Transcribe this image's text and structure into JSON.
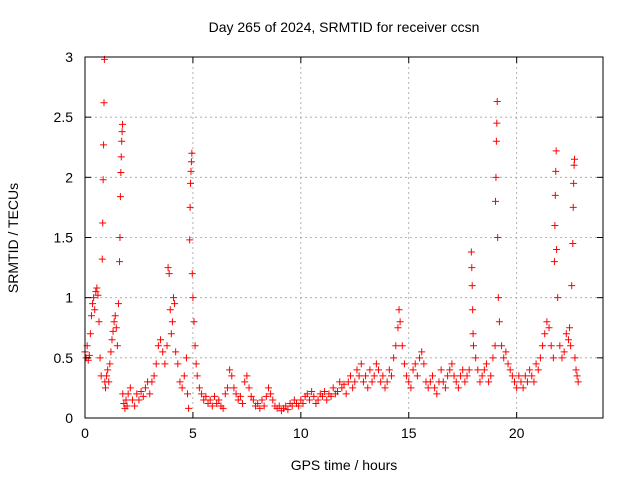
{
  "chart_data": {
    "type": "scatter",
    "title": "Day 265 of 2024, SRMTID for receiver ccsn",
    "xlabel": "GPS time / hours",
    "ylabel": "SRMTID / TECUs",
    "xlim": [
      0,
      24
    ],
    "ylim": [
      0,
      3
    ],
    "xticks": [
      0,
      5,
      10,
      15,
      20
    ],
    "xtick_labels": [
      "0",
      "5",
      "10",
      "15",
      "20"
    ],
    "yticks": [
      0,
      0.5,
      1,
      1.5,
      2,
      2.5,
      3
    ],
    "ytick_labels": [
      "0",
      "0.5",
      "1",
      "1.5",
      "2",
      "2.5",
      "3"
    ],
    "grid": true,
    "marker": "plus",
    "color": "#ff0000",
    "series": [
      {
        "name": "SRMTID",
        "points": [
          [
            0.0,
            0.55
          ],
          [
            0.05,
            0.5
          ],
          [
            0.1,
            0.6
          ],
          [
            0.15,
            0.48
          ],
          [
            0.2,
            0.52
          ],
          [
            0.25,
            0.7
          ],
          [
            0.3,
            0.85
          ],
          [
            0.35,
            0.95
          ],
          [
            0.4,
            1.0
          ],
          [
            0.45,
            0.9
          ],
          [
            0.5,
            1.05
          ],
          [
            0.55,
            1.08
          ],
          [
            0.6,
            1.02
          ],
          [
            0.65,
            0.8
          ],
          [
            0.7,
            0.5
          ],
          [
            0.75,
            0.35
          ],
          [
            0.8,
            1.32
          ],
          [
            0.82,
            1.62
          ],
          [
            0.84,
            1.98
          ],
          [
            0.86,
            2.27
          ],
          [
            0.88,
            2.62
          ],
          [
            0.9,
            2.98
          ],
          [
            0.92,
            0.3
          ],
          [
            0.95,
            0.25
          ],
          [
            1.0,
            0.35
          ],
          [
            1.05,
            0.4
          ],
          [
            1.1,
            0.3
          ],
          [
            1.15,
            0.45
          ],
          [
            1.2,
            0.55
          ],
          [
            1.25,
            0.65
          ],
          [
            1.3,
            0.72
          ],
          [
            1.35,
            0.8
          ],
          [
            1.4,
            0.85
          ],
          [
            1.45,
            0.75
          ],
          [
            1.5,
            0.6
          ],
          [
            1.55,
            0.95
          ],
          [
            1.6,
            1.3
          ],
          [
            1.62,
            1.5
          ],
          [
            1.64,
            1.84
          ],
          [
            1.66,
            2.04
          ],
          [
            1.68,
            2.17
          ],
          [
            1.7,
            2.3
          ],
          [
            1.72,
            2.38
          ],
          [
            1.74,
            2.44
          ],
          [
            1.75,
            0.2
          ],
          [
            1.8,
            0.12
          ],
          [
            1.85,
            0.08
          ],
          [
            1.9,
            0.15
          ],
          [
            1.95,
            0.1
          ],
          [
            2.0,
            0.2
          ],
          [
            2.1,
            0.25
          ],
          [
            2.2,
            0.15
          ],
          [
            2.3,
            0.1
          ],
          [
            2.4,
            0.2
          ],
          [
            2.5,
            0.15
          ],
          [
            2.6,
            0.22
          ],
          [
            2.7,
            0.18
          ],
          [
            2.8,
            0.25
          ],
          [
            2.9,
            0.3
          ],
          [
            3.0,
            0.2
          ],
          [
            3.1,
            0.3
          ],
          [
            3.2,
            0.35
          ],
          [
            3.3,
            0.45
          ],
          [
            3.4,
            0.6
          ],
          [
            3.5,
            0.65
          ],
          [
            3.6,
            0.55
          ],
          [
            3.7,
            0.45
          ],
          [
            3.8,
            0.6
          ],
          [
            3.85,
            1.25
          ],
          [
            3.9,
            1.2
          ],
          [
            3.95,
            0.9
          ],
          [
            4.0,
            0.7
          ],
          [
            4.05,
            0.8
          ],
          [
            4.1,
            1.0
          ],
          [
            4.15,
            0.95
          ],
          [
            4.2,
            0.55
          ],
          [
            4.3,
            0.45
          ],
          [
            4.4,
            0.3
          ],
          [
            4.5,
            0.25
          ],
          [
            4.6,
            0.35
          ],
          [
            4.7,
            0.5
          ],
          [
            4.75,
            0.2
          ],
          [
            4.8,
            0.08
          ],
          [
            4.85,
            1.48
          ],
          [
            4.87,
            1.75
          ],
          [
            4.89,
            1.95
          ],
          [
            4.91,
            2.05
          ],
          [
            4.93,
            2.13
          ],
          [
            4.95,
            2.2
          ],
          [
            4.97,
            1.2
          ],
          [
            5.0,
            1.0
          ],
          [
            5.05,
            0.8
          ],
          [
            5.1,
            0.6
          ],
          [
            5.15,
            0.45
          ],
          [
            5.2,
            0.35
          ],
          [
            5.3,
            0.25
          ],
          [
            5.4,
            0.2
          ],
          [
            5.5,
            0.15
          ],
          [
            5.6,
            0.18
          ],
          [
            5.7,
            0.12
          ],
          [
            5.8,
            0.15
          ],
          [
            5.9,
            0.1
          ],
          [
            6.0,
            0.18
          ],
          [
            6.1,
            0.12
          ],
          [
            6.2,
            0.15
          ],
          [
            6.3,
            0.1
          ],
          [
            6.4,
            0.08
          ],
          [
            6.5,
            0.2
          ],
          [
            6.6,
            0.25
          ],
          [
            6.7,
            0.4
          ],
          [
            6.8,
            0.35
          ],
          [
            6.9,
            0.25
          ],
          [
            7.0,
            0.2
          ],
          [
            7.1,
            0.15
          ],
          [
            7.2,
            0.18
          ],
          [
            7.3,
            0.12
          ],
          [
            7.4,
            0.3
          ],
          [
            7.5,
            0.35
          ],
          [
            7.6,
            0.25
          ],
          [
            7.7,
            0.18
          ],
          [
            7.8,
            0.15
          ],
          [
            7.9,
            0.1
          ],
          [
            8.0,
            0.12
          ],
          [
            8.1,
            0.08
          ],
          [
            8.2,
            0.15
          ],
          [
            8.3,
            0.1
          ],
          [
            8.4,
            0.18
          ],
          [
            8.5,
            0.25
          ],
          [
            8.6,
            0.2
          ],
          [
            8.7,
            0.15
          ],
          [
            8.8,
            0.1
          ],
          [
            8.9,
            0.08
          ],
          [
            9.0,
            0.1
          ],
          [
            9.1,
            0.06
          ],
          [
            9.2,
            0.08
          ],
          [
            9.3,
            0.1
          ],
          [
            9.4,
            0.07
          ],
          [
            9.5,
            0.12
          ],
          [
            9.6,
            0.1
          ],
          [
            9.7,
            0.15
          ],
          [
            9.8,
            0.12
          ],
          [
            9.9,
            0.1
          ],
          [
            10.0,
            0.15
          ],
          [
            10.1,
            0.12
          ],
          [
            10.2,
            0.18
          ],
          [
            10.3,
            0.2
          ],
          [
            10.4,
            0.15
          ],
          [
            10.5,
            0.22
          ],
          [
            10.6,
            0.18
          ],
          [
            10.7,
            0.12
          ],
          [
            10.8,
            0.15
          ],
          [
            10.9,
            0.2
          ],
          [
            11.0,
            0.18
          ],
          [
            11.1,
            0.22
          ],
          [
            11.2,
            0.15
          ],
          [
            11.3,
            0.2
          ],
          [
            11.4,
            0.18
          ],
          [
            11.5,
            0.25
          ],
          [
            11.6,
            0.2
          ],
          [
            11.7,
            0.22
          ],
          [
            11.8,
            0.3
          ],
          [
            11.9,
            0.25
          ],
          [
            12.0,
            0.28
          ],
          [
            12.1,
            0.2
          ],
          [
            12.2,
            0.3
          ],
          [
            12.3,
            0.35
          ],
          [
            12.4,
            0.25
          ],
          [
            12.5,
            0.3
          ],
          [
            12.6,
            0.4
          ],
          [
            12.7,
            0.35
          ],
          [
            12.8,
            0.45
          ],
          [
            12.9,
            0.3
          ],
          [
            13.0,
            0.35
          ],
          [
            13.1,
            0.25
          ],
          [
            13.2,
            0.4
          ],
          [
            13.3,
            0.3
          ],
          [
            13.4,
            0.35
          ],
          [
            13.5,
            0.45
          ],
          [
            13.6,
            0.4
          ],
          [
            13.7,
            0.3
          ],
          [
            13.8,
            0.35
          ],
          [
            13.9,
            0.25
          ],
          [
            14.0,
            0.3
          ],
          [
            14.1,
            0.4
          ],
          [
            14.2,
            0.35
          ],
          [
            14.3,
            0.5
          ],
          [
            14.4,
            0.6
          ],
          [
            14.5,
            0.75
          ],
          [
            14.55,
            0.9
          ],
          [
            14.6,
            0.8
          ],
          [
            14.7,
            0.6
          ],
          [
            14.8,
            0.45
          ],
          [
            14.9,
            0.35
          ],
          [
            15.0,
            0.3
          ],
          [
            15.1,
            0.25
          ],
          [
            15.2,
            0.4
          ],
          [
            15.3,
            0.45
          ],
          [
            15.4,
            0.35
          ],
          [
            15.5,
            0.5
          ],
          [
            15.6,
            0.55
          ],
          [
            15.7,
            0.45
          ],
          [
            15.8,
            0.3
          ],
          [
            15.9,
            0.25
          ],
          [
            16.0,
            0.3
          ],
          [
            16.1,
            0.35
          ],
          [
            16.2,
            0.25
          ],
          [
            16.3,
            0.2
          ],
          [
            16.4,
            0.3
          ],
          [
            16.5,
            0.4
          ],
          [
            16.6,
            0.3
          ],
          [
            16.7,
            0.25
          ],
          [
            16.8,
            0.35
          ],
          [
            16.9,
            0.4
          ],
          [
            17.0,
            0.45
          ],
          [
            17.1,
            0.35
          ],
          [
            17.2,
            0.3
          ],
          [
            17.3,
            0.25
          ],
          [
            17.4,
            0.35
          ],
          [
            17.5,
            0.4
          ],
          [
            17.6,
            0.3
          ],
          [
            17.7,
            0.35
          ],
          [
            17.8,
            0.4
          ],
          [
            17.9,
            1.38
          ],
          [
            17.92,
            1.25
          ],
          [
            17.94,
            1.1
          ],
          [
            17.96,
            0.9
          ],
          [
            17.98,
            0.7
          ],
          [
            18.0,
            0.6
          ],
          [
            18.1,
            0.5
          ],
          [
            18.2,
            0.4
          ],
          [
            18.3,
            0.3
          ],
          [
            18.4,
            0.35
          ],
          [
            18.5,
            0.4
          ],
          [
            18.6,
            0.45
          ],
          [
            18.7,
            0.3
          ],
          [
            18.8,
            0.35
          ],
          [
            18.9,
            0.5
          ],
          [
            19.0,
            0.6
          ],
          [
            19.02,
            1.8
          ],
          [
            19.04,
            2.0
          ],
          [
            19.06,
            2.3
          ],
          [
            19.08,
            2.45
          ],
          [
            19.1,
            2.63
          ],
          [
            19.12,
            1.5
          ],
          [
            19.15,
            1.0
          ],
          [
            19.2,
            0.8
          ],
          [
            19.3,
            0.6
          ],
          [
            19.4,
            0.5
          ],
          [
            19.5,
            0.55
          ],
          [
            19.6,
            0.45
          ],
          [
            19.7,
            0.4
          ],
          [
            19.8,
            0.35
          ],
          [
            19.9,
            0.3
          ],
          [
            20.0,
            0.25
          ],
          [
            20.1,
            0.35
          ],
          [
            20.2,
            0.3
          ],
          [
            20.3,
            0.25
          ],
          [
            20.4,
            0.35
          ],
          [
            20.5,
            0.3
          ],
          [
            20.6,
            0.4
          ],
          [
            20.7,
            0.35
          ],
          [
            20.8,
            0.3
          ],
          [
            20.9,
            0.45
          ],
          [
            21.0,
            0.4
          ],
          [
            21.1,
            0.5
          ],
          [
            21.2,
            0.6
          ],
          [
            21.3,
            0.7
          ],
          [
            21.4,
            0.8
          ],
          [
            21.5,
            0.75
          ],
          [
            21.6,
            0.6
          ],
          [
            21.7,
            0.5
          ],
          [
            21.75,
            1.3
          ],
          [
            21.77,
            1.6
          ],
          [
            21.79,
            1.85
          ],
          [
            21.81,
            2.05
          ],
          [
            21.83,
            2.22
          ],
          [
            21.85,
            1.4
          ],
          [
            21.9,
            1.0
          ],
          [
            22.0,
            0.6
          ],
          [
            22.1,
            0.5
          ],
          [
            22.2,
            0.55
          ],
          [
            22.3,
            0.7
          ],
          [
            22.4,
            0.65
          ],
          [
            22.45,
            0.75
          ],
          [
            22.5,
            0.6
          ],
          [
            22.55,
            1.1
          ],
          [
            22.6,
            1.45
          ],
          [
            22.62,
            1.75
          ],
          [
            22.64,
            1.95
          ],
          [
            22.66,
            2.1
          ],
          [
            22.68,
            2.15
          ],
          [
            22.7,
            0.5
          ],
          [
            22.75,
            0.4
          ],
          [
            22.8,
            0.35
          ],
          [
            22.85,
            0.3
          ]
        ]
      }
    ]
  }
}
